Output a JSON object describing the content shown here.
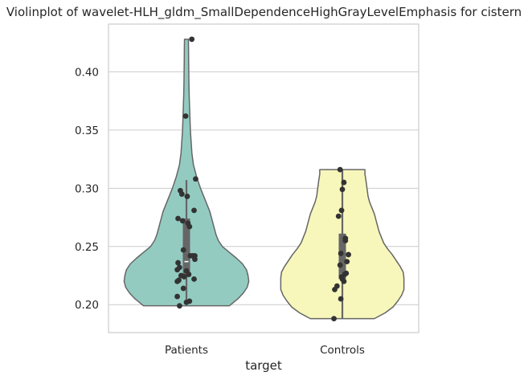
{
  "chart_data": {
    "type": "violin",
    "title": "Violinplot of wavelet-HLH_gldm_SmallDependenceHighGrayLevelEmphasis for cistern",
    "xlabel": "target",
    "ylabel": "",
    "categories": [
      "Patients",
      "Controls"
    ],
    "ylim": [
      0.176,
      0.441
    ],
    "yticks": [
      0.2,
      0.25,
      0.3,
      0.35,
      0.4
    ],
    "ytick_labels": [
      "0.20",
      "0.25",
      "0.30",
      "0.35",
      "0.40"
    ],
    "grid": true,
    "colors": {
      "Patients": "#93cbc1",
      "Controls": "#f7f7bb",
      "outline": "#666666",
      "points": "#333333",
      "grid": "#cccccc",
      "axes": "#cccccc"
    },
    "violins": [
      {
        "category": "Patients",
        "cut": [
          0.199,
          0.428
        ],
        "profile": [
          [
            0.199,
            0.55
          ],
          [
            0.205,
            0.66
          ],
          [
            0.21,
            0.73
          ],
          [
            0.215,
            0.78
          ],
          [
            0.22,
            0.8
          ],
          [
            0.225,
            0.79
          ],
          [
            0.23,
            0.77
          ],
          [
            0.235,
            0.72
          ],
          [
            0.24,
            0.64
          ],
          [
            0.245,
            0.55
          ],
          [
            0.25,
            0.46
          ],
          [
            0.255,
            0.41
          ],
          [
            0.26,
            0.38
          ],
          [
            0.265,
            0.36
          ],
          [
            0.27,
            0.34
          ],
          [
            0.275,
            0.32
          ],
          [
            0.28,
            0.3
          ],
          [
            0.285,
            0.27
          ],
          [
            0.29,
            0.24
          ],
          [
            0.295,
            0.21
          ],
          [
            0.3,
            0.18
          ],
          [
            0.305,
            0.155
          ],
          [
            0.31,
            0.13
          ],
          [
            0.315,
            0.11
          ],
          [
            0.32,
            0.09
          ],
          [
            0.33,
            0.07
          ],
          [
            0.34,
            0.06
          ],
          [
            0.35,
            0.05
          ],
          [
            0.36,
            0.045
          ],
          [
            0.37,
            0.04
          ],
          [
            0.38,
            0.035
          ],
          [
            0.39,
            0.032
          ],
          [
            0.4,
            0.03
          ],
          [
            0.41,
            0.028
          ],
          [
            0.42,
            0.027
          ],
          [
            0.428,
            0.025
          ]
        ],
        "box": {
          "q1": 0.226,
          "median": 0.237,
          "q3": 0.274,
          "whisker_low": 0.201,
          "whisker_high": 0.307
        },
        "points": [
          {
            "x": 0.07,
            "y": 0.428
          },
          {
            "x": -0.01,
            "y": 0.362
          },
          {
            "x": 0.12,
            "y": 0.308
          },
          {
            "x": -0.08,
            "y": 0.298
          },
          {
            "x": -0.06,
            "y": 0.295
          },
          {
            "x": 0.01,
            "y": 0.293
          },
          {
            "x": 0.1,
            "y": 0.281
          },
          {
            "x": -0.11,
            "y": 0.274
          },
          {
            "x": -0.05,
            "y": 0.272
          },
          {
            "x": 0.02,
            "y": 0.27
          },
          {
            "x": 0.04,
            "y": 0.267
          },
          {
            "x": -0.04,
            "y": 0.247
          },
          {
            "x": 0.05,
            "y": 0.242
          },
          {
            "x": 0.08,
            "y": 0.242
          },
          {
            "x": 0.11,
            "y": 0.242
          },
          {
            "x": 0.11,
            "y": 0.239
          },
          {
            "x": -0.11,
            "y": 0.236
          },
          {
            "x": -0.09,
            "y": 0.232
          },
          {
            "x": -0.12,
            "y": 0.23
          },
          {
            "x": 0.0,
            "y": 0.229
          },
          {
            "x": 0.03,
            "y": 0.226
          },
          {
            "x": -0.07,
            "y": 0.225
          },
          {
            "x": -0.03,
            "y": 0.224
          },
          {
            "x": 0.1,
            "y": 0.222
          },
          {
            "x": -0.1,
            "y": 0.221
          },
          {
            "x": -0.12,
            "y": 0.22
          },
          {
            "x": -0.04,
            "y": 0.214
          },
          {
            "x": -0.12,
            "y": 0.207
          },
          {
            "x": 0.04,
            "y": 0.203
          },
          {
            "x": 0.0,
            "y": 0.202
          },
          {
            "x": -0.09,
            "y": 0.199
          }
        ]
      },
      {
        "category": "Controls",
        "cut": [
          0.188,
          0.316
        ],
        "profile": [
          [
            0.188,
            0.41
          ],
          [
            0.193,
            0.55
          ],
          [
            0.198,
            0.65
          ],
          [
            0.203,
            0.71
          ],
          [
            0.208,
            0.76
          ],
          [
            0.213,
            0.79
          ],
          [
            0.218,
            0.79
          ],
          [
            0.223,
            0.79
          ],
          [
            0.228,
            0.78
          ],
          [
            0.233,
            0.74
          ],
          [
            0.238,
            0.69
          ],
          [
            0.243,
            0.64
          ],
          [
            0.248,
            0.58
          ],
          [
            0.253,
            0.53
          ],
          [
            0.258,
            0.5
          ],
          [
            0.263,
            0.47
          ],
          [
            0.268,
            0.45
          ],
          [
            0.273,
            0.43
          ],
          [
            0.278,
            0.41
          ],
          [
            0.283,
            0.38
          ],
          [
            0.288,
            0.35
          ],
          [
            0.293,
            0.33
          ],
          [
            0.298,
            0.32
          ],
          [
            0.303,
            0.31
          ],
          [
            0.308,
            0.3
          ],
          [
            0.312,
            0.29
          ],
          [
            0.316,
            0.29
          ]
        ],
        "box": {
          "q1": 0.222,
          "median": 0.226,
          "q3": 0.261,
          "whisker_low": 0.188,
          "whisker_high": 0.316
        },
        "points": [
          {
            "x": -0.03,
            "y": 0.316
          },
          {
            "x": 0.02,
            "y": 0.305
          },
          {
            "x": 0.0,
            "y": 0.299
          },
          {
            "x": -0.01,
            "y": 0.281
          },
          {
            "x": -0.05,
            "y": 0.276
          },
          {
            "x": 0.04,
            "y": 0.257
          },
          {
            "x": 0.04,
            "y": 0.255
          },
          {
            "x": 0.08,
            "y": 0.243
          },
          {
            "x": -0.02,
            "y": 0.244
          },
          {
            "x": 0.06,
            "y": 0.237
          },
          {
            "x": -0.03,
            "y": 0.234
          },
          {
            "x": 0.05,
            "y": 0.227
          },
          {
            "x": 0.03,
            "y": 0.226
          },
          {
            "x": -0.01,
            "y": 0.224
          },
          {
            "x": 0.0,
            "y": 0.222
          },
          {
            "x": 0.02,
            "y": 0.22
          },
          {
            "x": -0.07,
            "y": 0.216
          },
          {
            "x": -0.1,
            "y": 0.213
          },
          {
            "x": -0.02,
            "y": 0.205
          },
          {
            "x": -0.11,
            "y": 0.188
          }
        ]
      }
    ]
  }
}
